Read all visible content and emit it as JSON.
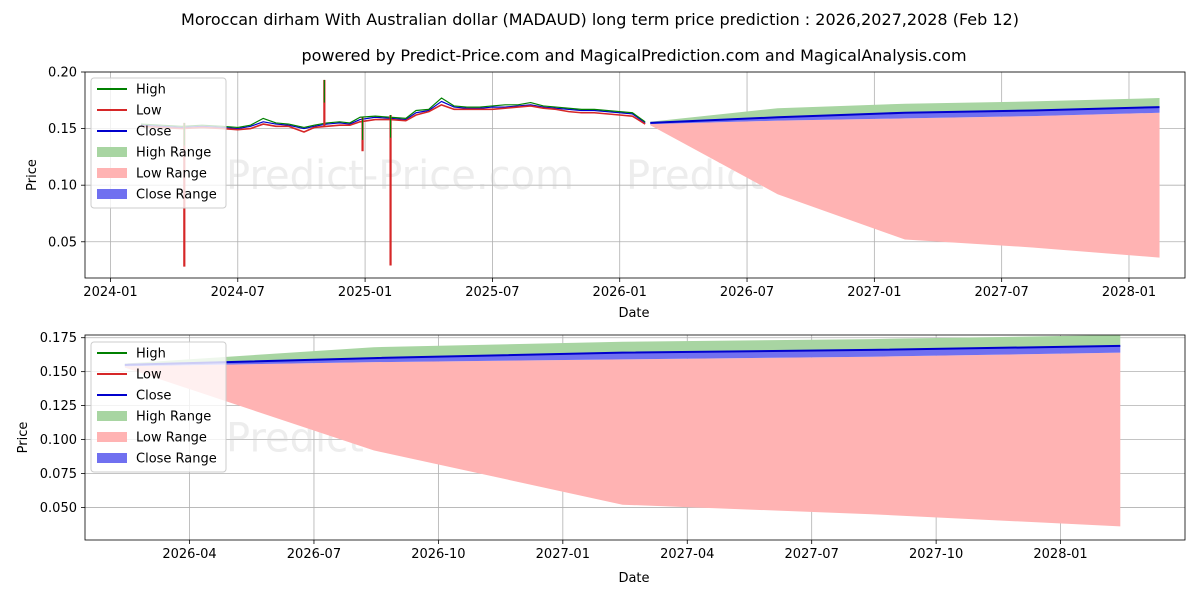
{
  "title": "Moroccan dirham With Australian dollar (MADAUD) long term price prediction : 2026,2027,2028 (Feb 12)",
  "subtitle": "powered by Predict-Price.com and MagicalPrediction.com and MagicalAnalysis.com",
  "watermark": "Predict-Price.com",
  "colors": {
    "high": "#008000",
    "low": "#d62728",
    "close": "#0000cd",
    "high_range": "#a8d5a2",
    "low_range": "#ffb3b3",
    "close_range": "#7070f0",
    "grid": "#b0b0b0"
  },
  "legend": [
    "High",
    "Low",
    "Close",
    "High Range",
    "Low Range",
    "Close Range"
  ],
  "chart_data": [
    {
      "type": "line",
      "title": "Moroccan dirham With Australian dollar (MADAUD) long term price prediction : 2026,2027,2028 (Feb 12)",
      "xlabel": "Date",
      "ylabel": "Price",
      "xlim": [
        2023.9,
        2028.22
      ],
      "ylim": [
        0.018,
        0.2
      ],
      "x_ticks": [
        2024.0,
        2024.5,
        2025.0,
        2025.5,
        2026.0,
        2026.5,
        2027.0,
        2027.5,
        2028.0
      ],
      "x_tick_labels": [
        "2024-01",
        "2024-07",
        "2025-01",
        "2025-07",
        "2026-01",
        "2026-07",
        "2027-01",
        "2027-07",
        "2028-01"
      ],
      "y_ticks": [
        0.05,
        0.1,
        0.15,
        0.2
      ],
      "y_tick_labels": [
        "0.05",
        "0.10",
        "0.15",
        "0.20"
      ],
      "grid": true,
      "legend_position": "upper-left",
      "history": {
        "x": [
          2024.12,
          2024.2,
          2024.28,
          2024.36,
          2024.44,
          2024.5,
          2024.55,
          2024.6,
          2024.65,
          2024.7,
          2024.76,
          2024.8,
          2024.85,
          2024.9,
          2024.94,
          2024.98,
          2025.04,
          2025.1,
          2025.16,
          2025.2,
          2025.25,
          2025.3,
          2025.35,
          2025.4,
          2025.45,
          2025.5,
          2025.55,
          2025.6,
          2025.65,
          2025.7,
          2025.75,
          2025.8,
          2025.85,
          2025.9,
          2025.95,
          2026.0,
          2026.05,
          2026.1
        ],
        "close": [
          0.153,
          0.152,
          0.151,
          0.152,
          0.151,
          0.15,
          0.152,
          0.156,
          0.154,
          0.153,
          0.15,
          0.152,
          0.154,
          0.155,
          0.154,
          0.158,
          0.16,
          0.159,
          0.158,
          0.164,
          0.166,
          0.174,
          0.169,
          0.168,
          0.168,
          0.169,
          0.169,
          0.17,
          0.171,
          0.169,
          0.168,
          0.167,
          0.166,
          0.166,
          0.165,
          0.164,
          0.163,
          0.155
        ],
        "high": [
          0.154,
          0.153,
          0.152,
          0.153,
          0.152,
          0.151,
          0.153,
          0.159,
          0.155,
          0.154,
          0.151,
          0.153,
          0.155,
          0.156,
          0.155,
          0.16,
          0.161,
          0.16,
          0.159,
          0.166,
          0.167,
          0.177,
          0.17,
          0.169,
          0.169,
          0.17,
          0.171,
          0.171,
          0.173,
          0.17,
          0.169,
          0.168,
          0.167,
          0.167,
          0.166,
          0.165,
          0.164,
          0.156
        ],
        "low": [
          0.152,
          0.151,
          0.15,
          0.151,
          0.15,
          0.149,
          0.15,
          0.154,
          0.152,
          0.152,
          0.147,
          0.151,
          0.152,
          0.153,
          0.153,
          0.156,
          0.158,
          0.158,
          0.157,
          0.162,
          0.165,
          0.171,
          0.167,
          0.167,
          0.167,
          0.167,
          0.168,
          0.169,
          0.17,
          0.168,
          0.167,
          0.165,
          0.164,
          0.164,
          0.163,
          0.162,
          0.161,
          0.154
        ]
      },
      "spikes": [
        {
          "x": 2024.29,
          "high": 0.155,
          "low": 0.028
        },
        {
          "x": 2024.84,
          "high": 0.193,
          "low": 0.152
        },
        {
          "x": 2024.99,
          "high": 0.16,
          "low": 0.13
        },
        {
          "x": 2025.1,
          "high": 0.162,
          "low": 0.029
        }
      ],
      "forecast": {
        "x": [
          2026.12,
          2026.62,
          2027.12,
          2027.62,
          2028.12
        ],
        "close": [
          0.155,
          0.16,
          0.164,
          0.166,
          0.169
        ],
        "high_range_upper": [
          0.156,
          0.168,
          0.172,
          0.174,
          0.177
        ],
        "close_range_lower": [
          0.154,
          0.157,
          0.159,
          0.161,
          0.164
        ],
        "low_range_lower": [
          0.153,
          0.092,
          0.052,
          0.045,
          0.036
        ]
      }
    },
    {
      "type": "line",
      "xlabel": "Date",
      "ylabel": "Price",
      "xlim": [
        2026.04,
        2028.25
      ],
      "ylim": [
        0.026,
        0.177
      ],
      "x_ticks": [
        2026.25,
        2026.5,
        2026.75,
        2027.0,
        2027.25,
        2027.5,
        2027.75,
        2028.0
      ],
      "x_tick_labels": [
        "2026-04",
        "2026-07",
        "2026-10",
        "2027-01",
        "2027-04",
        "2027-07",
        "2027-10",
        "2028-01"
      ],
      "y_ticks": [
        0.05,
        0.075,
        0.1,
        0.125,
        0.15,
        0.175
      ],
      "y_tick_labels": [
        "0.050",
        "0.075",
        "0.100",
        "0.125",
        "0.150",
        "0.175"
      ],
      "grid": true,
      "legend_position": "upper-left",
      "forecast": {
        "x": [
          2026.12,
          2026.62,
          2027.12,
          2027.62,
          2028.12
        ],
        "close": [
          0.155,
          0.16,
          0.164,
          0.166,
          0.169
        ],
        "high_range_upper": [
          0.156,
          0.168,
          0.172,
          0.174,
          0.177
        ],
        "close_range_lower": [
          0.154,
          0.157,
          0.159,
          0.161,
          0.164
        ],
        "low_range_lower": [
          0.153,
          0.092,
          0.052,
          0.045,
          0.036
        ]
      }
    }
  ]
}
